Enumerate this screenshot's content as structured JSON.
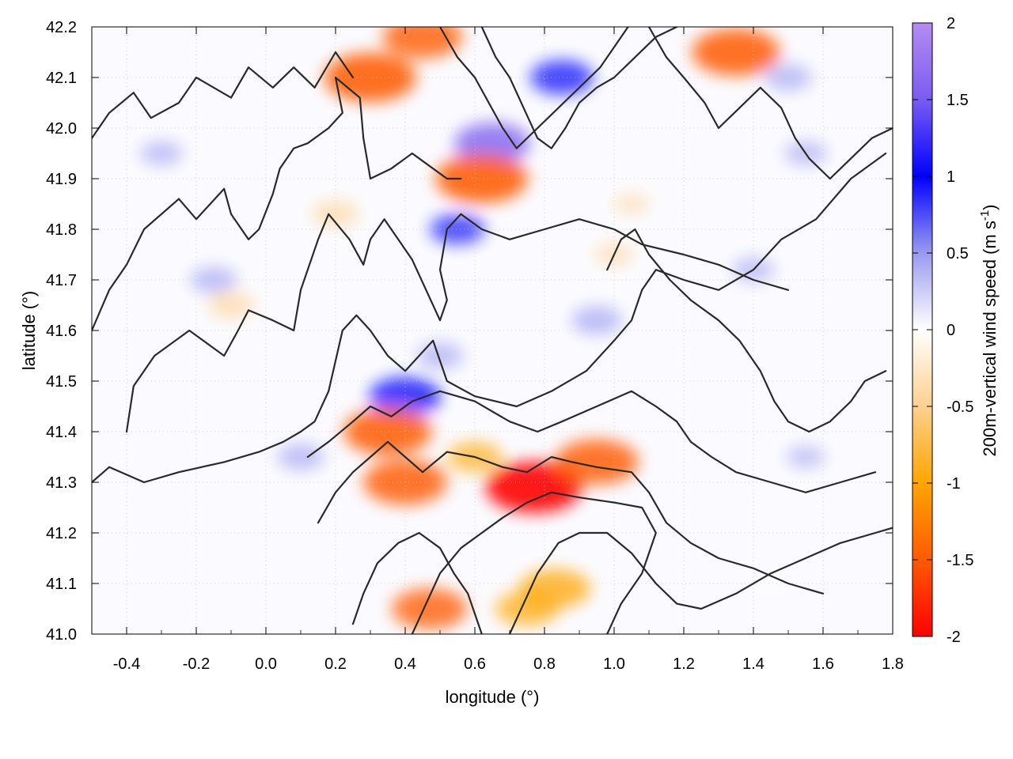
{
  "chart_data": {
    "type": "heatmap",
    "title": "",
    "xlabel": "longitude (°)",
    "ylabel": "latitude (°)",
    "xlim": [
      -0.5,
      1.8
    ],
    "ylim": [
      41.0,
      42.2
    ],
    "x_ticks": [
      "-0.4",
      "-0.2",
      "0.0",
      "0.2",
      "0.4",
      "0.6",
      "0.8",
      "1.0",
      "1.2",
      "1.4",
      "1.6",
      "1.8"
    ],
    "x_tick_values": [
      -0.4,
      -0.2,
      0.0,
      0.2,
      0.4,
      0.6,
      0.8,
      1.0,
      1.2,
      1.4,
      1.6,
      1.8
    ],
    "y_ticks": [
      "41.0",
      "41.1",
      "41.2",
      "41.3",
      "41.4",
      "41.5",
      "41.6",
      "41.7",
      "41.8",
      "41.9",
      "42.0",
      "42.1",
      "42.2"
    ],
    "y_tick_values": [
      41.0,
      41.1,
      41.2,
      41.3,
      41.4,
      41.5,
      41.6,
      41.7,
      41.8,
      41.9,
      42.0,
      42.1,
      42.2
    ],
    "grid": true,
    "colorbar": {
      "label": "200m-vertical wind speed (m s-1)",
      "label_main": "200m-vertical wind speed (m s",
      "label_sup": "-1",
      "label_end": ")",
      "range": [
        -2,
        2
      ],
      "ticks": [
        "2",
        "1.5",
        "1",
        "0.5",
        "0",
        "-0.5",
        "-1",
        "-1.5",
        "-2"
      ],
      "tick_values": [
        2,
        1.5,
        1,
        0.5,
        0,
        -0.5,
        -1,
        -1.5,
        -2
      ],
      "colors": {
        "2": "#b48cf0",
        "1.5": "#7a5cf0",
        "1": "#0000ff",
        "0.5": "#9a9af0",
        "0": "#ffffff",
        "-0.5": "#ffd090",
        "-1": "#ffa500",
        "-1.5": "#ff5a00",
        "-2": "#ff0000"
      }
    },
    "features": [
      {
        "lon": 0.4,
        "lat": 41.47,
        "value": 1.2
      },
      {
        "lon": 0.65,
        "lat": 41.97,
        "value": 1.3
      },
      {
        "lon": 0.85,
        "lat": 42.1,
        "value": 1.0
      },
      {
        "lon": 0.35,
        "lat": 41.4,
        "value": -1.6
      },
      {
        "lon": 0.77,
        "lat": 41.29,
        "value": -1.8
      },
      {
        "lon": 0.95,
        "lat": 41.34,
        "value": -1.5
      },
      {
        "lon": 0.62,
        "lat": 41.9,
        "value": -1.7
      },
      {
        "lon": 1.35,
        "lat": 42.15,
        "value": -1.6
      },
      {
        "lon": 0.3,
        "lat": 42.1,
        "value": -1.7
      },
      {
        "lon": 0.45,
        "lat": 42.18,
        "value": -1.4
      },
      {
        "lon": 0.4,
        "lat": 41.3,
        "value": -1.5
      },
      {
        "lon": 0.47,
        "lat": 41.05,
        "value": -1.3
      },
      {
        "lon": 0.83,
        "lat": 41.09,
        "value": -1.2
      },
      {
        "lon": 0.75,
        "lat": 41.05,
        "value": -1.0
      },
      {
        "lon": 1.0,
        "lat": 41.75,
        "value": -0.4
      },
      {
        "lon": 0.2,
        "lat": 41.83,
        "value": -0.6
      },
      {
        "lon": -0.1,
        "lat": 41.65,
        "value": -0.6
      },
      {
        "lon": 1.05,
        "lat": 41.85,
        "value": -0.3
      },
      {
        "lon": 0.6,
        "lat": 41.35,
        "value": -0.8
      },
      {
        "lon": 0.95,
        "lat": 41.62,
        "value": 0.7
      },
      {
        "lon": -0.15,
        "lat": 41.7,
        "value": 0.6
      },
      {
        "lon": 0.55,
        "lat": 41.8,
        "value": 0.8
      },
      {
        "lon": 1.4,
        "lat": 41.72,
        "value": 0.5
      },
      {
        "lon": 1.55,
        "lat": 41.95,
        "value": 0.5
      },
      {
        "lon": 1.5,
        "lat": 42.1,
        "value": 0.6
      },
      {
        "lon": -0.3,
        "lat": 41.95,
        "value": 0.5
      },
      {
        "lon": 0.1,
        "lat": 41.35,
        "value": 0.6
      },
      {
        "lon": 1.55,
        "lat": 41.35,
        "value": 0.4
      },
      {
        "lon": 0.5,
        "lat": 41.55,
        "value": 0.6
      },
      {
        "lon": 1.45,
        "lat": 41.1,
        "value": 0.2
      }
    ],
    "contours": [
      [
        [
          -0.5,
          41.98
        ],
        [
          -0.45,
          42.03
        ],
        [
          -0.38,
          42.07
        ],
        [
          -0.33,
          42.02
        ],
        [
          -0.25,
          42.05
        ],
        [
          -0.2,
          42.1
        ],
        [
          -0.1,
          42.06
        ],
        [
          -0.05,
          42.12
        ],
        [
          0.02,
          42.08
        ],
        [
          0.08,
          42.12
        ],
        [
          0.14,
          42.08
        ],
        [
          0.2,
          42.15
        ],
        [
          0.25,
          42.1
        ]
      ],
      [
        [
          -0.5,
          41.6
        ],
        [
          -0.45,
          41.68
        ],
        [
          -0.4,
          41.73
        ],
        [
          -0.35,
          41.8
        ],
        [
          -0.25,
          41.86
        ],
        [
          -0.2,
          41.82
        ],
        [
          -0.12,
          41.88
        ],
        [
          -0.1,
          41.83
        ],
        [
          -0.05,
          41.78
        ],
        [
          -0.02,
          41.8
        ],
        [
          0.02,
          41.87
        ],
        [
          0.04,
          41.92
        ],
        [
          0.08,
          41.96
        ],
        [
          0.12,
          41.97
        ],
        [
          0.18,
          42.0
        ],
        [
          0.22,
          42.03
        ],
        [
          0.2,
          42.1
        ],
        [
          0.27,
          42.06
        ],
        [
          0.28,
          41.98
        ],
        [
          0.3,
          41.9
        ],
        [
          0.36,
          41.92
        ],
        [
          0.42,
          41.95
        ],
        [
          0.46,
          41.93
        ],
        [
          0.52,
          41.9
        ],
        [
          0.56,
          41.9
        ]
      ],
      [
        [
          -0.4,
          41.4
        ],
        [
          -0.38,
          41.49
        ],
        [
          -0.32,
          41.55
        ],
        [
          -0.22,
          41.6
        ],
        [
          -0.12,
          41.55
        ],
        [
          -0.08,
          41.6
        ],
        [
          -0.05,
          41.64
        ],
        [
          0.02,
          41.62
        ],
        [
          0.08,
          41.6
        ],
        [
          0.1,
          41.68
        ],
        [
          0.15,
          41.78
        ],
        [
          0.18,
          41.83
        ],
        [
          0.24,
          41.78
        ],
        [
          0.28,
          41.73
        ],
        [
          0.3,
          41.78
        ],
        [
          0.34,
          41.82
        ],
        [
          0.38,
          41.78
        ],
        [
          0.42,
          41.74
        ],
        [
          0.46,
          41.68
        ],
        [
          0.5,
          41.62
        ],
        [
          0.52,
          41.66
        ],
        [
          0.5,
          41.72
        ],
        [
          0.52,
          41.8
        ],
        [
          0.56,
          41.83
        ],
        [
          0.62,
          41.8
        ],
        [
          0.7,
          41.78
        ],
        [
          0.8,
          41.8
        ],
        [
          0.9,
          41.82
        ],
        [
          1.0,
          41.8
        ],
        [
          1.08,
          41.77
        ],
        [
          1.2,
          41.75
        ],
        [
          1.3,
          41.73
        ],
        [
          1.4,
          41.7
        ],
        [
          1.5,
          41.68
        ]
      ],
      [
        [
          -0.5,
          41.3
        ],
        [
          -0.45,
          41.33
        ],
        [
          -0.35,
          41.3
        ],
        [
          -0.25,
          41.32
        ],
        [
          -0.12,
          41.34
        ],
        [
          -0.02,
          41.36
        ],
        [
          0.05,
          41.38
        ],
        [
          0.1,
          41.4
        ],
        [
          0.14,
          41.42
        ],
        [
          0.18,
          41.48
        ],
        [
          0.2,
          41.54
        ],
        [
          0.22,
          41.6
        ],
        [
          0.26,
          41.63
        ],
        [
          0.3,
          41.6
        ],
        [
          0.35,
          41.55
        ],
        [
          0.4,
          41.52
        ],
        [
          0.44,
          41.55
        ],
        [
          0.48,
          41.58
        ],
        [
          0.52,
          41.5
        ],
        [
          0.6,
          41.47
        ],
        [
          0.72,
          41.45
        ],
        [
          0.82,
          41.48
        ],
        [
          0.92,
          41.52
        ],
        [
          1.0,
          41.58
        ],
        [
          1.05,
          41.62
        ],
        [
          1.08,
          41.68
        ],
        [
          1.12,
          41.72
        ],
        [
          1.2,
          41.7
        ],
        [
          1.3,
          41.68
        ],
        [
          1.4,
          41.72
        ],
        [
          1.48,
          41.78
        ],
        [
          1.58,
          41.82
        ],
        [
          1.68,
          41.9
        ],
        [
          1.78,
          41.95
        ]
      ],
      [
        [
          0.12,
          41.35
        ],
        [
          0.18,
          41.38
        ],
        [
          0.25,
          41.42
        ],
        [
          0.3,
          41.45
        ],
        [
          0.36,
          41.43
        ],
        [
          0.42,
          41.46
        ],
        [
          0.5,
          41.48
        ],
        [
          0.6,
          41.46
        ],
        [
          0.7,
          41.42
        ],
        [
          0.78,
          41.4
        ],
        [
          0.85,
          41.42
        ],
        [
          0.95,
          41.45
        ],
        [
          1.05,
          41.48
        ],
        [
          1.12,
          41.45
        ],
        [
          1.18,
          41.42
        ],
        [
          1.22,
          41.38
        ],
        [
          1.28,
          41.35
        ],
        [
          1.35,
          41.32
        ],
        [
          1.45,
          41.3
        ],
        [
          1.55,
          41.28
        ],
        [
          1.65,
          41.3
        ],
        [
          1.75,
          41.32
        ]
      ],
      [
        [
          0.15,
          41.22
        ],
        [
          0.2,
          41.28
        ],
        [
          0.25,
          41.32
        ],
        [
          0.3,
          41.35
        ],
        [
          0.35,
          41.38
        ],
        [
          0.4,
          41.35
        ],
        [
          0.45,
          41.32
        ],
        [
          0.52,
          41.36
        ],
        [
          0.6,
          41.35
        ],
        [
          0.68,
          41.33
        ],
        [
          0.75,
          41.32
        ],
        [
          0.82,
          41.35
        ],
        [
          0.88,
          41.34
        ],
        [
          0.95,
          41.33
        ],
        [
          1.05,
          41.32
        ],
        [
          1.1,
          41.28
        ],
        [
          1.15,
          41.22
        ],
        [
          1.22,
          41.18
        ],
        [
          1.3,
          41.15
        ],
        [
          1.4,
          41.13
        ],
        [
          1.5,
          41.1
        ],
        [
          1.6,
          41.08
        ]
      ],
      [
        [
          0.25,
          41.02
        ],
        [
          0.28,
          41.08
        ],
        [
          0.32,
          41.14
        ],
        [
          0.38,
          41.18
        ],
        [
          0.44,
          41.2
        ],
        [
          0.5,
          41.17
        ],
        [
          0.54,
          41.12
        ],
        [
          0.58,
          41.08
        ],
        [
          0.6,
          41.04
        ],
        [
          0.62,
          41.0
        ]
      ],
      [
        [
          0.42,
          41.0
        ],
        [
          0.46,
          41.06
        ],
        [
          0.5,
          41.12
        ],
        [
          0.56,
          41.17
        ],
        [
          0.62,
          41.2
        ],
        [
          0.68,
          41.23
        ],
        [
          0.75,
          41.26
        ],
        [
          0.82,
          41.28
        ],
        [
          0.9,
          41.27
        ],
        [
          1.0,
          41.26
        ],
        [
          1.08,
          41.25
        ],
        [
          1.12,
          41.2
        ],
        [
          1.08,
          41.12
        ],
        [
          1.02,
          41.06
        ],
        [
          0.98,
          41.0
        ]
      ],
      [
        [
          0.7,
          41.0
        ],
        [
          0.74,
          41.06
        ],
        [
          0.78,
          41.12
        ],
        [
          0.84,
          41.18
        ],
        [
          0.9,
          41.2
        ],
        [
          0.98,
          41.2
        ],
        [
          1.05,
          41.16
        ],
        [
          1.12,
          41.1
        ],
        [
          1.18,
          41.06
        ],
        [
          1.25,
          41.05
        ],
        [
          1.35,
          41.08
        ],
        [
          1.45,
          41.12
        ],
        [
          1.55,
          41.15
        ],
        [
          1.65,
          41.18
        ],
        [
          1.75,
          41.2
        ],
        [
          1.8,
          41.21
        ]
      ],
      [
        [
          0.5,
          42.2
        ],
        [
          0.55,
          42.14
        ],
        [
          0.6,
          42.1
        ],
        [
          0.64,
          42.05
        ],
        [
          0.68,
          42.0
        ],
        [
          0.72,
          41.96
        ],
        [
          0.78,
          42.0
        ],
        [
          0.84,
          42.04
        ],
        [
          0.9,
          42.08
        ],
        [
          0.96,
          42.12
        ],
        [
          1.0,
          42.16
        ],
        [
          1.04,
          42.2
        ]
      ],
      [
        [
          0.62,
          42.2
        ],
        [
          0.66,
          42.14
        ],
        [
          0.7,
          42.1
        ],
        [
          0.74,
          42.04
        ],
        [
          0.78,
          41.98
        ],
        [
          0.82,
          41.96
        ],
        [
          0.86,
          42.0
        ],
        [
          0.9,
          42.05
        ],
        [
          0.95,
          42.08
        ],
        [
          1.0,
          42.1
        ],
        [
          1.06,
          42.14
        ],
        [
          1.12,
          42.18
        ],
        [
          1.18,
          42.2
        ]
      ],
      [
        [
          1.1,
          42.2
        ],
        [
          1.15,
          42.14
        ],
        [
          1.2,
          42.1
        ],
        [
          1.26,
          42.05
        ],
        [
          1.3,
          42.0
        ],
        [
          1.36,
          42.04
        ],
        [
          1.42,
          42.08
        ],
        [
          1.48,
          42.04
        ],
        [
          1.52,
          41.98
        ],
        [
          1.56,
          41.94
        ],
        [
          1.62,
          41.9
        ],
        [
          1.68,
          41.94
        ],
        [
          1.74,
          41.98
        ],
        [
          1.8,
          42.0
        ]
      ],
      [
        [
          0.98,
          41.72
        ],
        [
          1.02,
          41.78
        ],
        [
          1.06,
          41.8
        ],
        [
          1.1,
          41.75
        ],
        [
          1.16,
          41.7
        ],
        [
          1.22,
          41.66
        ],
        [
          1.3,
          41.62
        ],
        [
          1.36,
          41.58
        ],
        [
          1.42,
          41.52
        ],
        [
          1.46,
          41.46
        ],
        [
          1.5,
          41.42
        ],
        [
          1.56,
          41.4
        ],
        [
          1.62,
          41.42
        ],
        [
          1.68,
          41.46
        ],
        [
          1.72,
          41.5
        ],
        [
          1.78,
          41.52
        ]
      ]
    ]
  }
}
